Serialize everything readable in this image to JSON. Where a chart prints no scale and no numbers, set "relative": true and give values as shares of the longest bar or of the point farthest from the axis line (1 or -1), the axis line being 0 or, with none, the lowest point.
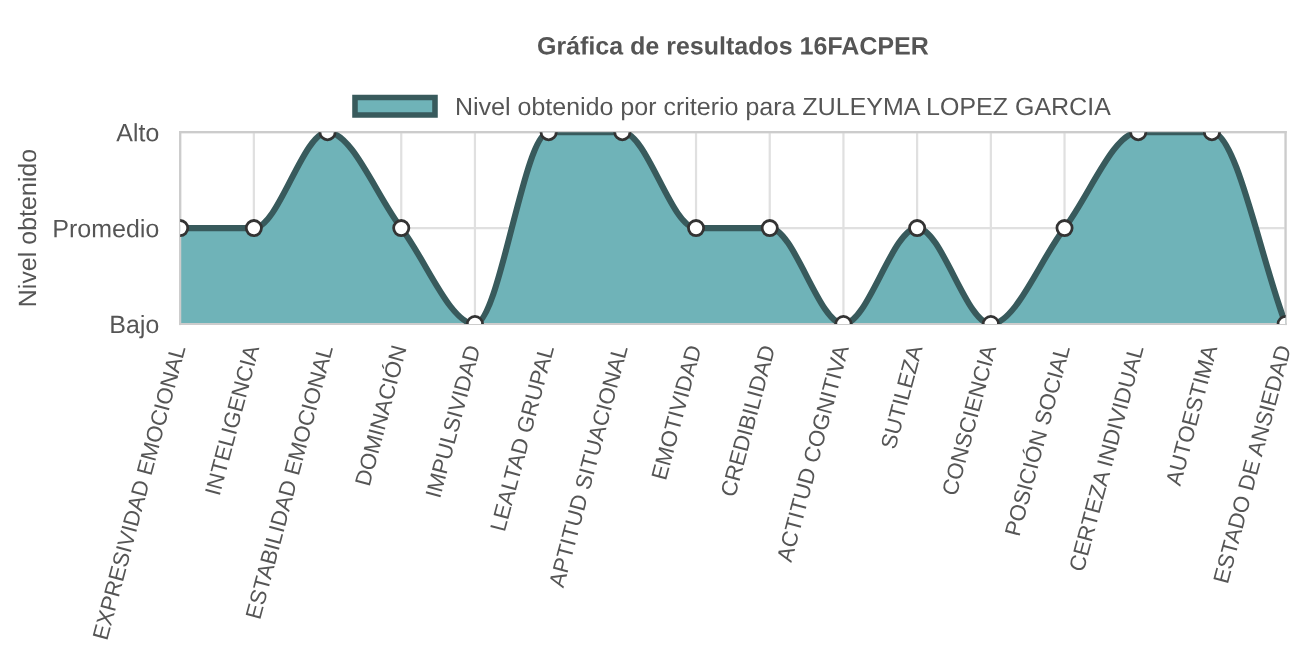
{
  "chart_data": {
    "type": "area",
    "title": "Gráfica de resultados 16FACPER",
    "ylabel": "Nivel obtenido",
    "categories": [
      "EXPRESIVIDAD EMOCIONAL",
      "INTELIGENCIA",
      "ESTABILIDAD EMOCIONAL",
      "DOMINACIÓN",
      "IMPULSIVIDAD",
      "LEALTAD GRUPAL",
      "APTITUD SITUACIONAL",
      "EMOTIVIDAD",
      "CREDIBILIDAD",
      "ACTITUD COGNITIVA",
      "SUTILEZA",
      "CONSCIENCIA",
      "POSICIÓN SOCIAL",
      "CERTEZA INDIVIDUAL",
      "AUTOESTIMA",
      "ESTADO DE ANSIEDAD"
    ],
    "series": [
      {
        "name": "Nivel obtenido por criterio para ZULEYMA LOPEZ GARCIA",
        "color": "#6fb3b8",
        "values": [
          0.5,
          0.5,
          1,
          0.5,
          0,
          1,
          1,
          0.5,
          0.5,
          0,
          0.5,
          0,
          0.5,
          1,
          1,
          0
        ]
      }
    ],
    "relative": true,
    "y_categories": [
      "Alto",
      "Promedio",
      "Bajo"
    ],
    "grid": true,
    "legend": "top",
    "marker": "circle",
    "line_style": "solid"
  }
}
